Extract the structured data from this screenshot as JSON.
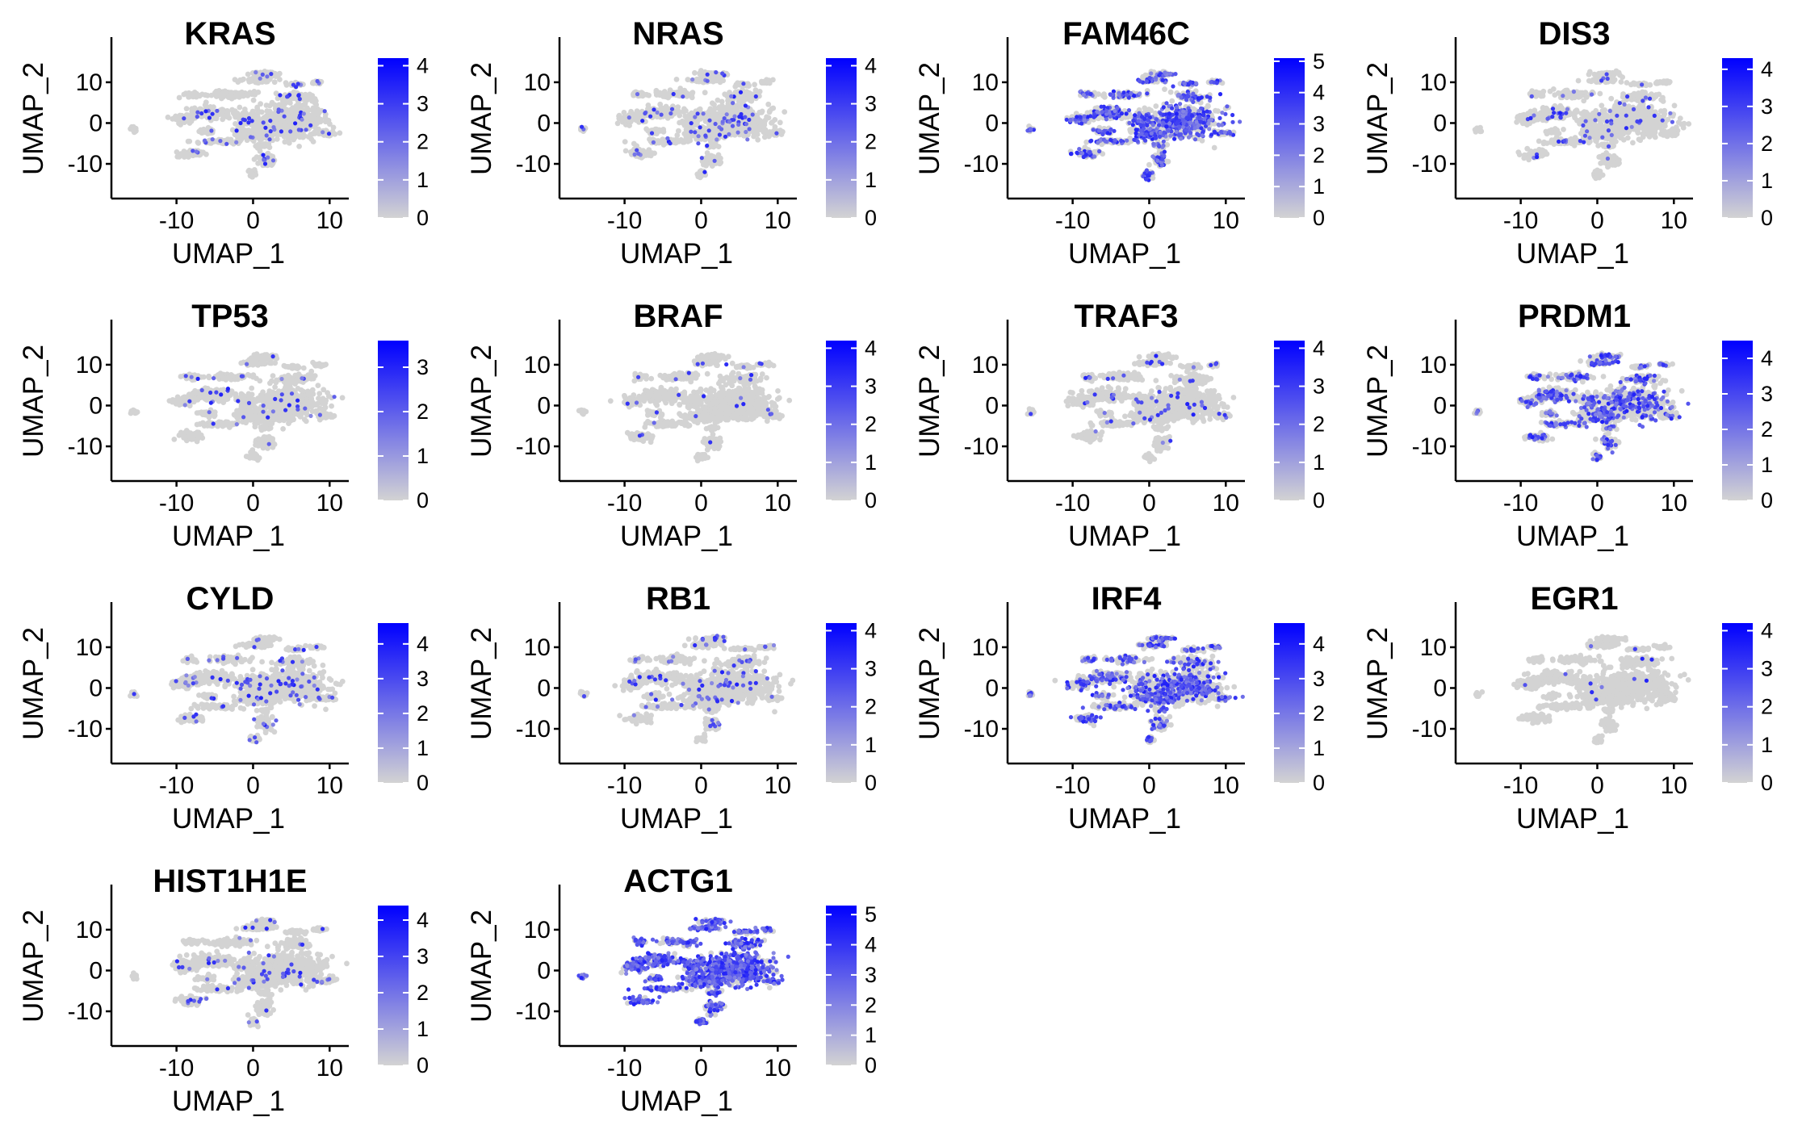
{
  "colors": {
    "low": "#d3d3d3",
    "high": "#0000ff",
    "axis": "#000000",
    "background": "#ffffff"
  },
  "chart_data": [
    {
      "type": "scatter",
      "title": "KRAS",
      "xlabel": "UMAP_1",
      "ylabel": "UMAP_2",
      "xticks": [
        "-10",
        "0",
        "10"
      ],
      "yticks": [
        "10",
        "0",
        "-10"
      ],
      "legend": {
        "ticks": [
          "4",
          "3",
          "2",
          "1",
          "0"
        ],
        "max": 4.2
      },
      "expression_fraction": 0.05
    },
    {
      "type": "scatter",
      "title": "NRAS",
      "xlabel": "UMAP_1",
      "ylabel": "UMAP_2",
      "xticks": [
        "-10",
        "0",
        "10"
      ],
      "yticks": [
        "10",
        "0",
        "-10"
      ],
      "legend": {
        "ticks": [
          "4",
          "3",
          "2",
          "1",
          "0"
        ],
        "max": 4.2
      },
      "expression_fraction": 0.05
    },
    {
      "type": "scatter",
      "title": "FAM46C",
      "xlabel": "UMAP_1",
      "ylabel": "UMAP_2",
      "xticks": [
        "-10",
        "0",
        "10"
      ],
      "yticks": [
        "10",
        "0",
        "-10"
      ],
      "legend": {
        "ticks": [
          "5",
          "4",
          "3",
          "2",
          "1",
          "0"
        ],
        "max": 5.1
      },
      "expression_fraction": 0.45
    },
    {
      "type": "scatter",
      "title": "DIS3",
      "xlabel": "UMAP_1",
      "ylabel": "UMAP_2",
      "xticks": [
        "-10",
        "0",
        "10"
      ],
      "yticks": [
        "10",
        "0",
        "-10"
      ],
      "legend": {
        "ticks": [
          "4",
          "3",
          "2",
          "1",
          "0"
        ],
        "max": 4.3
      },
      "expression_fraction": 0.04
    },
    {
      "type": "scatter",
      "title": "TP53",
      "xlabel": "UMAP_1",
      "ylabel": "UMAP_2",
      "xticks": [
        "-10",
        "0",
        "10"
      ],
      "yticks": [
        "10",
        "0",
        "-10"
      ],
      "legend": {
        "ticks": [
          "3",
          "2",
          "1",
          "0"
        ],
        "max": 3.6
      },
      "expression_fraction": 0.03
    },
    {
      "type": "scatter",
      "title": "BRAF",
      "xlabel": "UMAP_1",
      "ylabel": "UMAP_2",
      "xticks": [
        "-10",
        "0",
        "10"
      ],
      "yticks": [
        "10",
        "0",
        "-10"
      ],
      "legend": {
        "ticks": [
          "4",
          "3",
          "2",
          "1",
          "0"
        ],
        "max": 4.2
      },
      "expression_fraction": 0.02
    },
    {
      "type": "scatter",
      "title": "TRAF3",
      "xlabel": "UMAP_1",
      "ylabel": "UMAP_2",
      "xticks": [
        "-10",
        "0",
        "10"
      ],
      "yticks": [
        "10",
        "0",
        "-10"
      ],
      "legend": {
        "ticks": [
          "4",
          "3",
          "2",
          "1",
          "0"
        ],
        "max": 4.2
      },
      "expression_fraction": 0.04
    },
    {
      "type": "scatter",
      "title": "PRDM1",
      "xlabel": "UMAP_1",
      "ylabel": "UMAP_2",
      "xticks": [
        "-10",
        "0",
        "10"
      ],
      "yticks": [
        "10",
        "0",
        "-10"
      ],
      "legend": {
        "ticks": [
          "4",
          "3",
          "2",
          "1",
          "0"
        ],
        "max": 4.5
      },
      "expression_fraction": 0.3
    },
    {
      "type": "scatter",
      "title": "CYLD",
      "xlabel": "UMAP_1",
      "ylabel": "UMAP_2",
      "xticks": [
        "-10",
        "0",
        "10"
      ],
      "yticks": [
        "10",
        "0",
        "-10"
      ],
      "legend": {
        "ticks": [
          "4",
          "3",
          "2",
          "1",
          "0"
        ],
        "max": 4.6
      },
      "expression_fraction": 0.06
    },
    {
      "type": "scatter",
      "title": "RB1",
      "xlabel": "UMAP_1",
      "ylabel": "UMAP_2",
      "xticks": [
        "-10",
        "0",
        "10"
      ],
      "yticks": [
        "10",
        "0",
        "-10"
      ],
      "legend": {
        "ticks": [
          "4",
          "3",
          "2",
          "1",
          "0"
        ],
        "max": 4.2
      },
      "expression_fraction": 0.05
    },
    {
      "type": "scatter",
      "title": "IRF4",
      "xlabel": "UMAP_1",
      "ylabel": "UMAP_2",
      "xticks": [
        "-10",
        "0",
        "10"
      ],
      "yticks": [
        "10",
        "0",
        "-10"
      ],
      "legend": {
        "ticks": [
          "4",
          "3",
          "2",
          "1",
          "0"
        ],
        "max": 4.6
      },
      "expression_fraction": 0.35
    },
    {
      "type": "scatter",
      "title": "EGR1",
      "xlabel": "UMAP_1",
      "ylabel": "UMAP_2",
      "xticks": [
        "-10",
        "0",
        "10"
      ],
      "yticks": [
        "10",
        "0",
        "-10"
      ],
      "legend": {
        "ticks": [
          "4",
          "3",
          "2",
          "1",
          "0"
        ],
        "max": 4.2
      },
      "expression_fraction": 0.01
    },
    {
      "type": "scatter",
      "title": "HIST1H1E",
      "xlabel": "UMAP_1",
      "ylabel": "UMAP_2",
      "xticks": [
        "-10",
        "0",
        "10"
      ],
      "yticks": [
        "10",
        "0",
        "-10"
      ],
      "legend": {
        "ticks": [
          "4",
          "3",
          "2",
          "1",
          "0"
        ],
        "max": 4.4
      },
      "expression_fraction": 0.04
    },
    {
      "type": "scatter",
      "title": "ACTG1",
      "xlabel": "UMAP_1",
      "ylabel": "UMAP_2",
      "xticks": [
        "-10",
        "0",
        "10"
      ],
      "yticks": [
        "10",
        "0",
        "-10"
      ],
      "legend": {
        "ticks": [
          "5",
          "4",
          "3",
          "2",
          "1",
          "0"
        ],
        "max": 5.3
      },
      "expression_fraction": 0.7
    }
  ]
}
